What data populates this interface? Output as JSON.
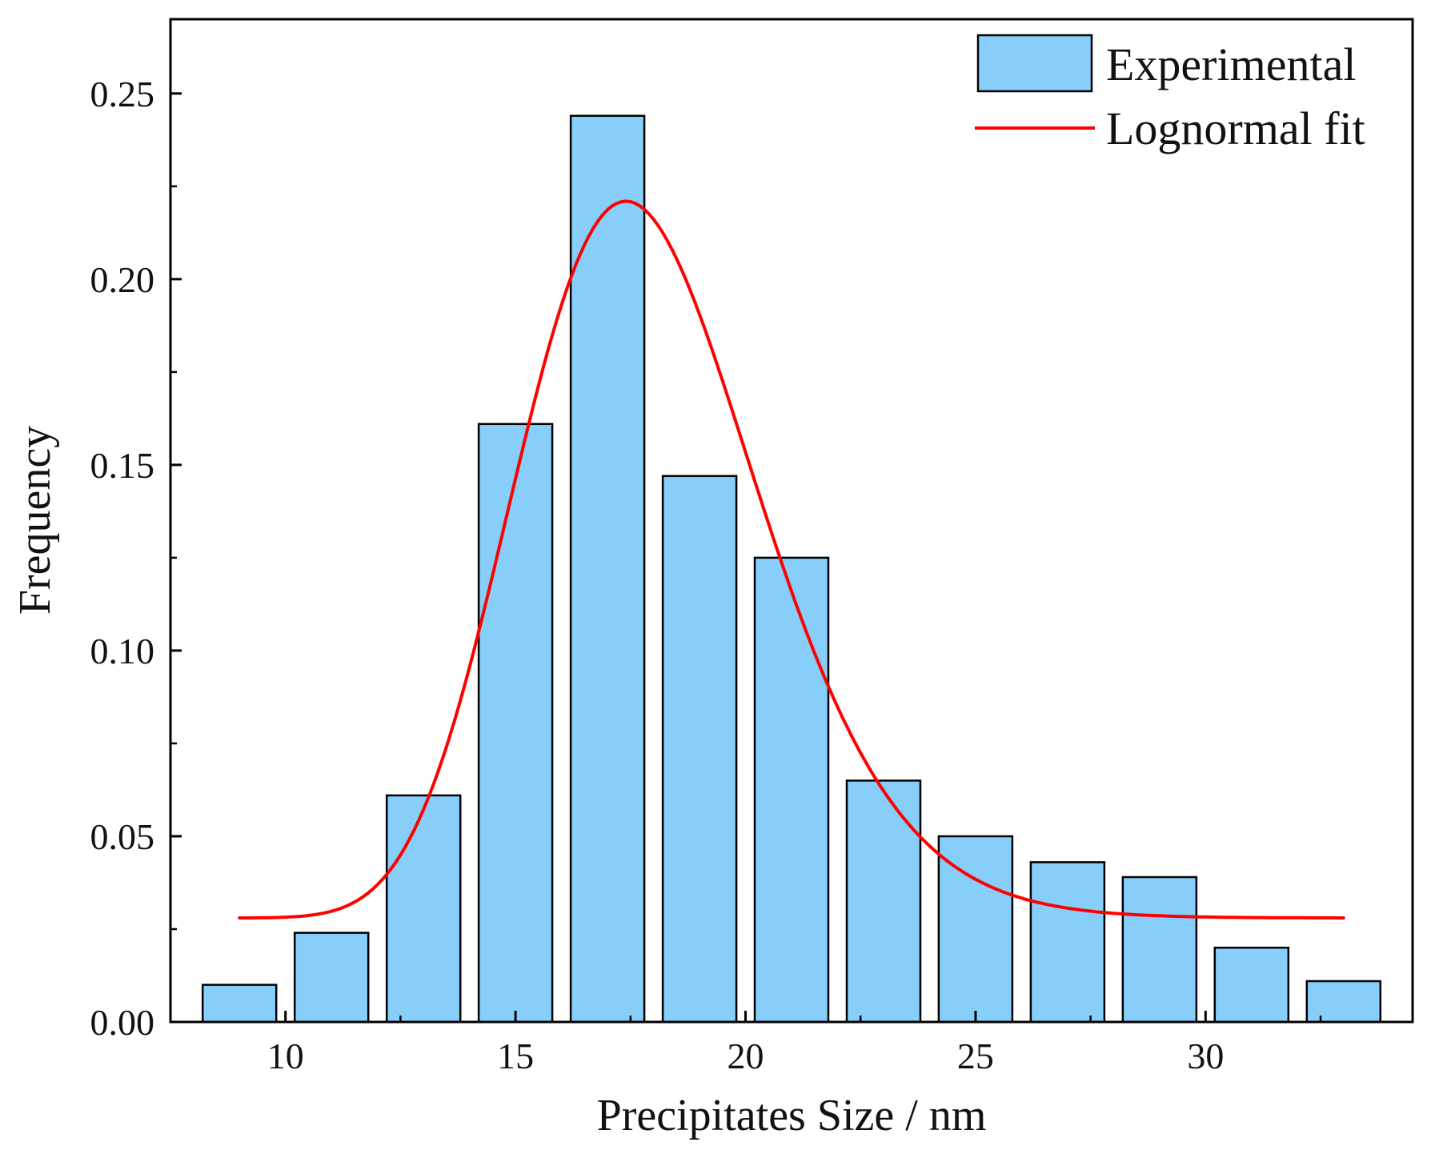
{
  "chart_data": {
    "type": "bar",
    "title": "",
    "xlabel": "Precipitates Size / nm",
    "ylabel": "Frequency",
    "xlim": [
      7.5,
      34.5
    ],
    "ylim": [
      0,
      0.27
    ],
    "grid": false,
    "legend_position": "top-right",
    "x_ticks": [
      10,
      15,
      20,
      25,
      30
    ],
    "x_tick_labels": [
      "10",
      "15",
      "20",
      "25",
      "30"
    ],
    "y_ticks": [
      0,
      0.05,
      0.1,
      0.15,
      0.2,
      0.25
    ],
    "y_tick_labels": [
      "0.00",
      "0.05",
      "0.10",
      "0.15",
      "0.20",
      "0.25"
    ],
    "bar_width": 1.6,
    "series": [
      {
        "name": "Experimental",
        "kind": "bar",
        "color": "#87CEFA",
        "edge_color": "#000000",
        "x": [
          9,
          11,
          13,
          15,
          17,
          19,
          21,
          23,
          25,
          27,
          29,
          31,
          33
        ],
        "values": [
          0.01,
          0.024,
          0.061,
          0.161,
          0.244,
          0.147,
          0.125,
          0.065,
          0.05,
          0.043,
          0.039,
          0.02,
          0.011
        ]
      },
      {
        "name": "Lognormal fit",
        "kind": "line",
        "color": "#FF0000",
        "x_range": [
          9,
          33
        ],
        "params": {
          "y0": 0.028,
          "xc": 17.4,
          "w": 0.15,
          "peak": 0.221
        }
      }
    ]
  }
}
